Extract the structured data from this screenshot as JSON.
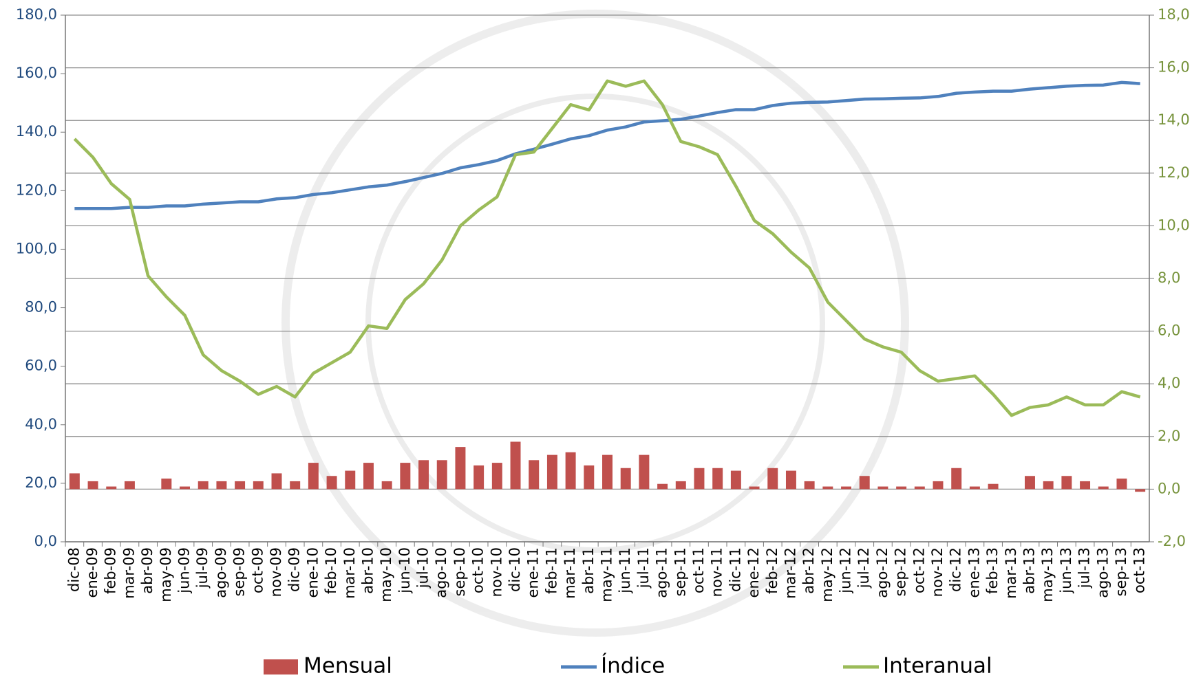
{
  "chart_data": {
    "type": "bar-line",
    "categories": [
      "dic-08",
      "ene-09",
      "feb-09",
      "mar-09",
      "abr-09",
      "may-09",
      "jun-09",
      "jul-09",
      "ago-09",
      "sep-09",
      "oct-09",
      "nov-09",
      "dic-09",
      "ene-10",
      "feb-10",
      "mar-10",
      "abr-10",
      "may-10",
      "jun-10",
      "jul-10",
      "ago-10",
      "sep-10",
      "oct-10",
      "nov-10",
      "dic-10",
      "ene-11",
      "feb-11",
      "mar-11",
      "abr-11",
      "may-11",
      "jun-11",
      "jul-11",
      "ago-11",
      "sep-11",
      "oct-11",
      "nov-11",
      "dic-11",
      "ene-12",
      "feb-12",
      "mar-12",
      "abr-12",
      "may-12",
      "jun-12",
      "jul-12",
      "ago-12",
      "sep-12",
      "oct-12",
      "nov-12",
      "dic-12",
      "ene-13",
      "feb-13",
      "mar-13",
      "abr-13",
      "may-13",
      "jun-13",
      "jul-13",
      "ago-13",
      "sep-13",
      "oct-13"
    ],
    "series": [
      {
        "name": "Mensual",
        "type": "bar",
        "axis": "y2",
        "color": "#c0504d",
        "values": [
          0.6,
          0.3,
          0.1,
          0.3,
          0.0,
          0.4,
          0.1,
          0.3,
          0.3,
          0.3,
          0.3,
          0.6,
          0.3,
          1.0,
          0.5,
          0.7,
          1.0,
          0.3,
          1.0,
          1.1,
          1.1,
          1.6,
          0.9,
          1.0,
          1.8,
          1.1,
          1.3,
          1.4,
          0.9,
          1.3,
          0.8,
          1.3,
          0.2,
          0.3,
          0.8,
          0.8,
          0.7,
          0.1,
          0.8,
          0.7,
          0.3,
          0.1,
          0.1,
          0.5,
          0.1,
          0.1,
          0.1,
          0.3,
          0.8,
          0.1,
          0.2,
          0.0,
          0.5,
          0.3,
          0.5,
          0.3,
          0.1,
          0.4,
          -0.1
        ]
      },
      {
        "name": "Índice",
        "type": "line",
        "axis": "y",
        "color": "#4f81bd",
        "values": [
          113.9,
          113.9,
          113.9,
          114.3,
          114.3,
          114.8,
          114.8,
          115.4,
          115.8,
          116.2,
          116.2,
          117.2,
          117.6,
          118.7,
          119.3,
          120.3,
          121.3,
          121.9,
          123.1,
          124.5,
          125.9,
          127.8,
          128.9,
          130.3,
          132.6,
          134.2,
          135.9,
          137.7,
          138.8,
          140.7,
          141.8,
          143.5,
          143.9,
          144.4,
          145.5,
          146.7,
          147.7,
          147.7,
          149.1,
          149.9,
          150.2,
          150.3,
          150.8,
          151.3,
          151.4,
          151.6,
          151.7,
          152.2,
          153.3,
          153.7,
          154.0,
          154.0,
          154.7,
          155.2,
          155.7,
          156.0,
          156.1,
          157.0,
          156.6
        ]
      },
      {
        "name": "Interanual",
        "type": "line",
        "axis": "y2",
        "color": "#9bbb59",
        "values": [
          13.3,
          12.6,
          11.6,
          11.0,
          8.1,
          7.3,
          6.6,
          5.1,
          4.5,
          4.1,
          3.6,
          3.9,
          3.5,
          4.4,
          4.8,
          5.2,
          6.2,
          6.1,
          7.2,
          7.8,
          8.7,
          10.0,
          10.6,
          11.1,
          12.7,
          12.8,
          13.7,
          14.6,
          14.4,
          15.5,
          15.3,
          15.5,
          14.6,
          13.2,
          13.0,
          12.7,
          11.5,
          10.2,
          9.7,
          9.0,
          8.4,
          7.1,
          6.4,
          5.7,
          5.4,
          5.2,
          4.5,
          4.1,
          4.2,
          4.3,
          3.6,
          2.8,
          3.1,
          3.2,
          3.5,
          3.2,
          3.2,
          3.7,
          3.5
        ]
      }
    ],
    "ylim": [
      0,
      180
    ],
    "yticks": [
      {
        "value": 0,
        "label": "0,0"
      },
      {
        "value": 20,
        "label": "20,0"
      },
      {
        "value": 40,
        "label": "40,0"
      },
      {
        "value": 60,
        "label": "60,0"
      },
      {
        "value": 80,
        "label": "80,0"
      },
      {
        "value": 100,
        "label": "100,0"
      },
      {
        "value": 120,
        "label": "120,0"
      },
      {
        "value": 140,
        "label": "140,0"
      },
      {
        "value": 160,
        "label": "160,0"
      },
      {
        "value": 180,
        "label": "180,0"
      }
    ],
    "y2lim": [
      -2,
      18
    ],
    "y2ticks": [
      {
        "value": -2,
        "label": "-2,0"
      },
      {
        "value": 0,
        "label": "0,0"
      },
      {
        "value": 2,
        "label": "2,0"
      },
      {
        "value": 4,
        "label": "4,0"
      },
      {
        "value": 6,
        "label": "6,0"
      },
      {
        "value": 8,
        "label": "8,0"
      },
      {
        "value": 10,
        "label": "10,0"
      },
      {
        "value": 12,
        "label": "12,0"
      },
      {
        "value": 14,
        "label": "14,0"
      },
      {
        "value": 16,
        "label": "16,0"
      },
      {
        "value": 18,
        "label": "18,0"
      }
    ],
    "grid": true,
    "legend": "bottom"
  }
}
